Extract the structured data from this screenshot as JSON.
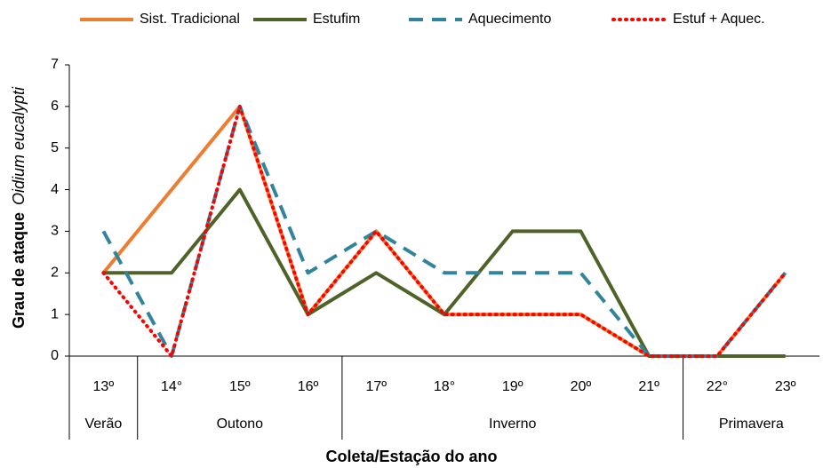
{
  "chart_data": {
    "type": "line",
    "ylabel": "Grau de ataque",
    "ylabel_species": "Oidium eucalypti",
    "xlabel": "Coleta/Estação do ano",
    "categories": [
      "13º",
      "14°",
      "15º",
      "16º",
      "17º",
      "18°",
      "19º",
      "20º",
      "21º",
      "22°",
      "23º"
    ],
    "group_labels": [
      "Verão",
      "Outono",
      "Inverno",
      "Primavera"
    ],
    "group_spans": [
      1,
      3,
      5,
      2
    ],
    "series": [
      {
        "name": "Sist. Tradicional",
        "color": "#ed7d31",
        "style": "solid",
        "values": [
          2,
          4,
          6,
          1,
          3,
          1,
          1,
          1,
          0,
          0,
          2
        ]
      },
      {
        "name": "Estufim",
        "color": "#4f6228",
        "style": "solid",
        "values": [
          2,
          2,
          4,
          1,
          2,
          1,
          3,
          3,
          0,
          0,
          0
        ]
      },
      {
        "name": "Aquecimento",
        "color": "#31849b",
        "style": "dashed",
        "values": [
          3,
          0,
          6,
          2,
          3,
          2,
          2,
          2,
          0,
          0,
          2
        ]
      },
      {
        "name": "Estuf + Aquec.",
        "color": "#ff0000",
        "style": "dotted",
        "values": [
          2,
          0,
          6,
          1,
          3,
          1,
          1,
          1,
          0,
          0,
          2
        ]
      }
    ],
    "ylim": [
      0,
      7
    ],
    "yticks": [
      0,
      1,
      2,
      3,
      4,
      5,
      6,
      7
    ],
    "legend": "top"
  }
}
